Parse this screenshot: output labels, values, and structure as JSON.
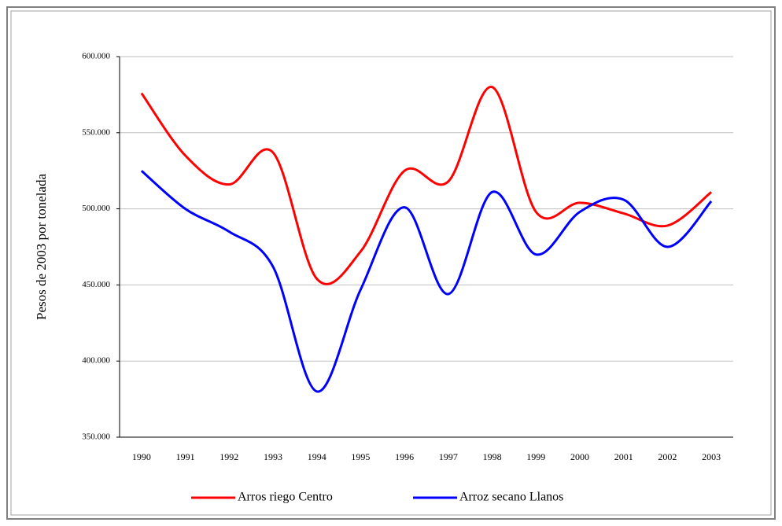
{
  "chart_data": {
    "type": "line",
    "y_label": "Pesos de 2003 por tonelada",
    "categories": [
      "1990",
      "1991",
      "1992",
      "1993",
      "1994",
      "1995",
      "1996",
      "1997",
      "1998",
      "1999",
      "2000",
      "2001",
      "2002",
      "2003"
    ],
    "series": [
      {
        "name": "Arros riego Centro",
        "color": "#ff0000",
        "values": [
          576000,
          535000,
          516000,
          537000,
          454000,
          472000,
          525000,
          518000,
          580000,
          498000,
          504000,
          497000,
          489000,
          511000
        ]
      },
      {
        "name": "Arroz secano Llanos",
        "color": "#0000ff",
        "values": [
          525000,
          500000,
          485000,
          462000,
          380000,
          447000,
          501000,
          444000,
          511000,
          470000,
          498000,
          506000,
          475000,
          505000
        ]
      }
    ],
    "ylim": [
      350000,
      600000
    ],
    "yticks": [
      {
        "value": 350000,
        "label": "350.000"
      },
      {
        "value": 400000,
        "label": "400.000"
      },
      {
        "value": 450000,
        "label": "450.000"
      },
      {
        "value": 500000,
        "label": "500.000"
      },
      {
        "value": 550000,
        "label": "550.000"
      },
      {
        "value": 600000,
        "label": "600.000"
      }
    ],
    "grid": true,
    "smooth": true,
    "legend": "bottom"
  }
}
